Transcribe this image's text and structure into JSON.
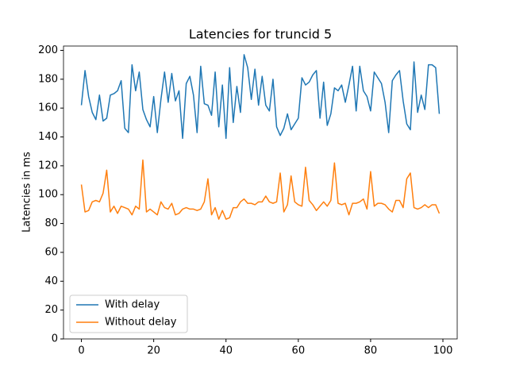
{
  "chart_data": {
    "type": "line",
    "title": "Latencies for truncid 5",
    "ylabel": "Latencies in ms",
    "x": [
      0,
      1,
      2,
      3,
      4,
      5,
      6,
      7,
      8,
      9,
      10,
      11,
      12,
      13,
      14,
      15,
      16,
      17,
      18,
      19,
      20,
      21,
      22,
      23,
      24,
      25,
      26,
      27,
      28,
      29,
      30,
      31,
      32,
      33,
      34,
      35,
      36,
      37,
      38,
      39,
      40,
      41,
      42,
      43,
      44,
      45,
      46,
      47,
      48,
      49,
      50,
      51,
      52,
      53,
      54,
      55,
      56,
      57,
      58,
      59,
      60,
      61,
      62,
      63,
      64,
      65,
      66,
      67,
      68,
      69,
      70,
      71,
      72,
      73,
      74,
      75,
      76,
      77,
      78,
      79,
      80,
      81,
      82,
      83,
      84,
      85,
      86,
      87,
      88,
      89,
      90,
      91,
      92,
      93,
      94,
      95,
      96,
      97,
      98,
      99
    ],
    "series": [
      {
        "name": "With delay",
        "color": "#1f77b4",
        "values": [
          162,
          186,
          168,
          157,
          152,
          169,
          151,
          153,
          169,
          170,
          172,
          179,
          146,
          143,
          190,
          172,
          185,
          159,
          152,
          147,
          168,
          143,
          166,
          185,
          164,
          184,
          165,
          172,
          139,
          177,
          182,
          169,
          143,
          189,
          163,
          162,
          155,
          185,
          147,
          176,
          139,
          188,
          150,
          175,
          157,
          197,
          188,
          166,
          187,
          162,
          182,
          162,
          158,
          180,
          147,
          141,
          146,
          156,
          145,
          149,
          153,
          181,
          176,
          178,
          183,
          186,
          153,
          178,
          148,
          156,
          174,
          172,
          176,
          164,
          176,
          189,
          158,
          189,
          172,
          168,
          158,
          185,
          181,
          177,
          164,
          143,
          179,
          183,
          186,
          165,
          149,
          145,
          192,
          157,
          169,
          159,
          190,
          190,
          188,
          156
        ]
      },
      {
        "name": "Without delay",
        "color": "#ff7f0e",
        "values": [
          107,
          88,
          89,
          95,
          96,
          95,
          101,
          117,
          88,
          92,
          87,
          92,
          91,
          90,
          86,
          92,
          90,
          124,
          88,
          90,
          88,
          86,
          95,
          91,
          90,
          94,
          86,
          87,
          90,
          91,
          90,
          90,
          89,
          90,
          95,
          111,
          86,
          91,
          83,
          89,
          83,
          84,
          91,
          91,
          95,
          97,
          94,
          94,
          93,
          95,
          95,
          99,
          95,
          94,
          95,
          115,
          88,
          93,
          113,
          95,
          93,
          92,
          119,
          96,
          93,
          89,
          92,
          95,
          92,
          96,
          122,
          94,
          93,
          94,
          86,
          94,
          94,
          95,
          97,
          90,
          116,
          92,
          94,
          94,
          93,
          90,
          88,
          96,
          96,
          91,
          111,
          115,
          91,
          90,
          91,
          93,
          91,
          93,
          93,
          87
        ]
      }
    ],
    "xlim": [
      -4.95,
      103.95
    ],
    "xticks": [
      0,
      20,
      40,
      60,
      80,
      100
    ],
    "ylim": [
      0,
      203
    ],
    "yticks": [
      0,
      20,
      40,
      60,
      80,
      100,
      120,
      140,
      160,
      180,
      200
    ],
    "legend": "lower left"
  }
}
